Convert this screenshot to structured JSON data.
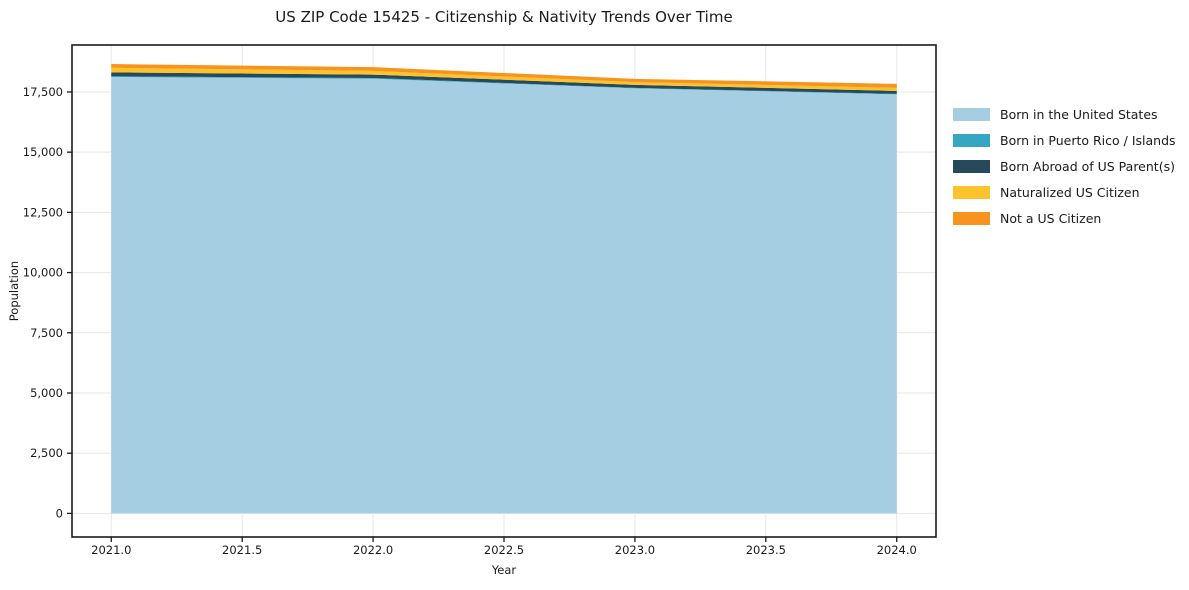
{
  "title": "US ZIP Code 15425 - Citizenship & Nativity Trends Over Time",
  "chart_data": {
    "type": "area",
    "stacked": true,
    "title": "US ZIP Code 15425 - Citizenship & Nativity Trends Over Time",
    "xlabel": "Year",
    "ylabel": "Population",
    "x": [
      2021,
      2022,
      2023,
      2024
    ],
    "series": [
      {
        "name": "Born in the United States",
        "color": "#a6cee3",
        "values": [
          18120,
          18050,
          17650,
          17400
        ]
      },
      {
        "name": "Born in Puerto Rico / Islands",
        "color": "#35a7c2",
        "values": [
          30,
          30,
          20,
          20
        ]
      },
      {
        "name": "Born Abroad of US Parent(s)",
        "color": "#26495c",
        "values": [
          165,
          140,
          125,
          125
        ]
      },
      {
        "name": "Naturalized US Citizen",
        "color": "#fcc32d",
        "values": [
          190,
          155,
          115,
          125
        ]
      },
      {
        "name": "Not a US Citizen",
        "color": "#f7941e",
        "values": [
          155,
          155,
          135,
          165
        ]
      }
    ],
    "xticks": {
      "values": [
        2021.0,
        2021.5,
        2022.0,
        2022.5,
        2023.0,
        2023.5,
        2024.0
      ],
      "labels": [
        "2021.0",
        "2021.5",
        "2022.0",
        "2022.5",
        "2023.0",
        "2023.5",
        "2024.0"
      ]
    },
    "yticks": {
      "values": [
        0,
        2500,
        5000,
        7500,
        10000,
        12500,
        15000,
        17500
      ],
      "labels": [
        "0",
        "2,500",
        "5,000",
        "7,500",
        "10,000",
        "12,500",
        "15,000",
        "17,500"
      ]
    },
    "xlim": [
      2020.85,
      2024.15
    ],
    "ylim": [
      -980,
      19450
    ],
    "grid": true,
    "legend_position": "right-outside",
    "colors": {
      "grid": "#e7e7e7",
      "frame": "#1a1a1a",
      "tick_label": "#1a1a1a",
      "background": "#ffffff"
    }
  }
}
